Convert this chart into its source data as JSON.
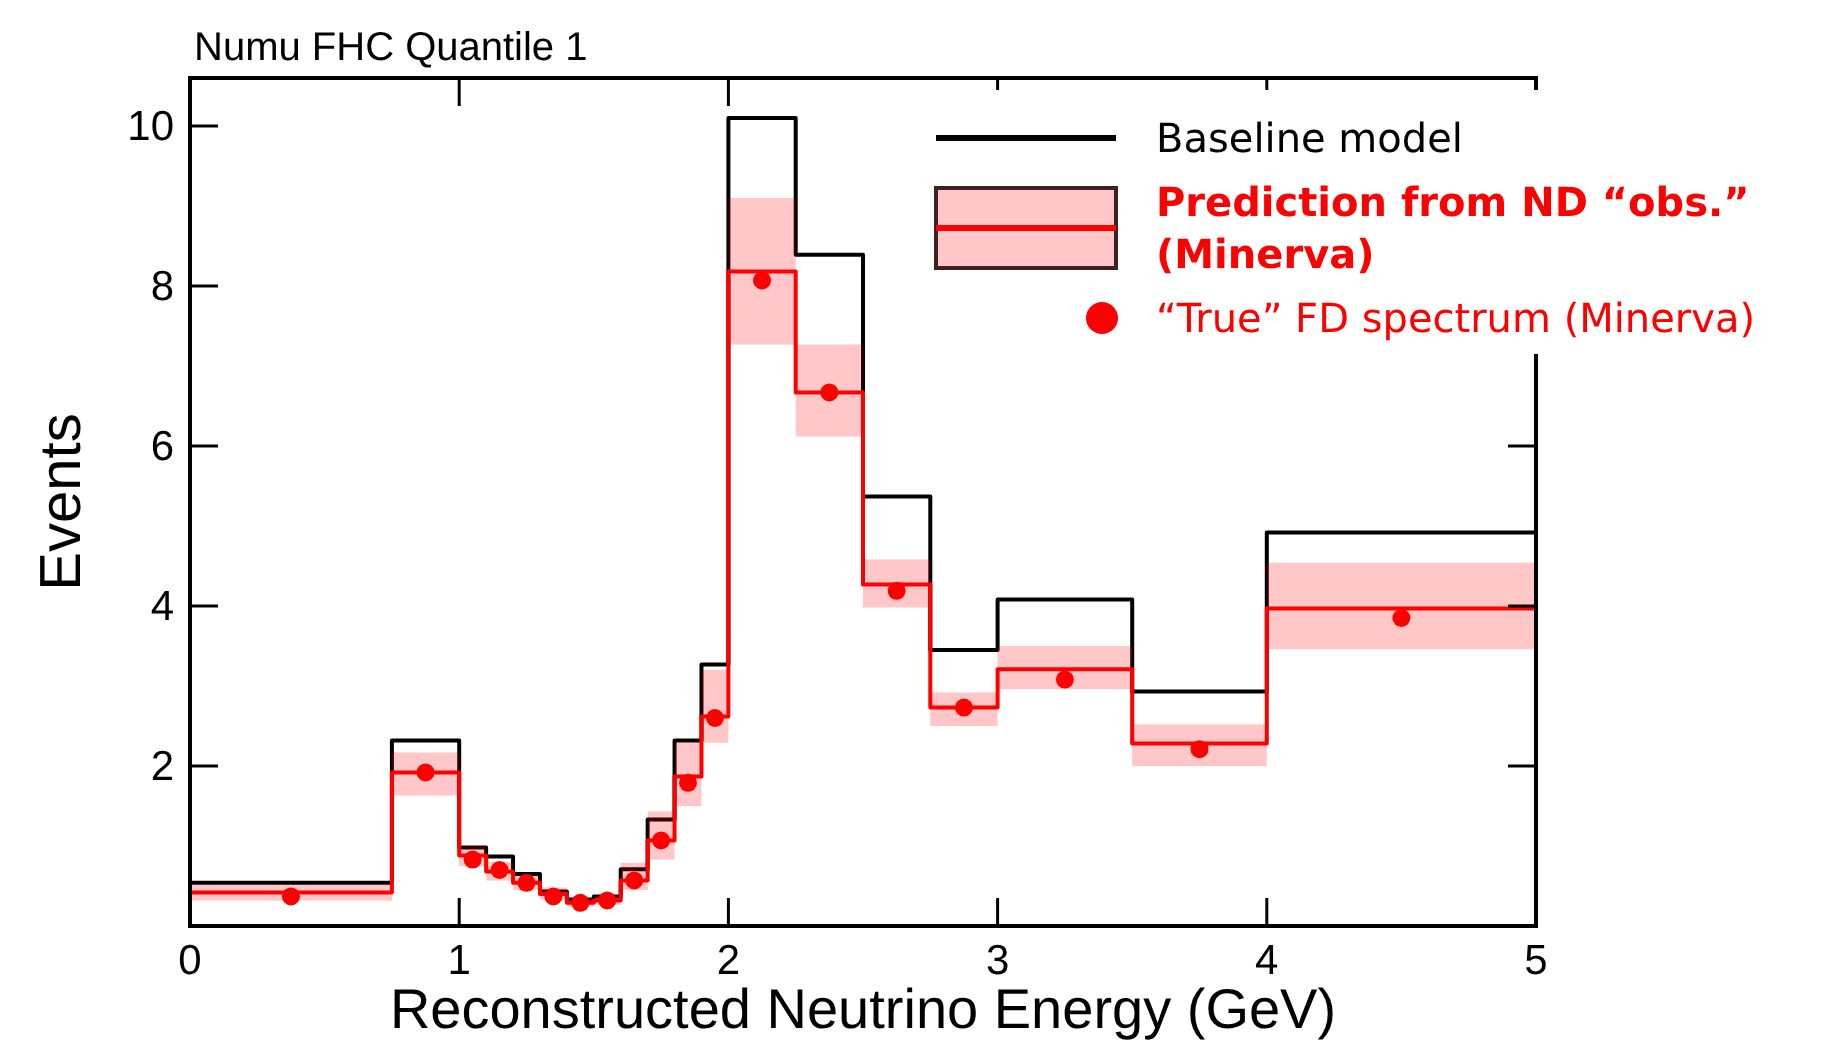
{
  "chart_data": {
    "type": "step",
    "title": "Numu FHC Quantile 1",
    "xlabel": "Reconstructed Neutrino Energy (GeV)",
    "ylabel": "Events",
    "x": [
      0,
      0.75,
      1.0,
      1.1,
      1.2,
      1.3,
      1.4,
      1.5,
      1.6,
      1.7,
      1.8,
      1.9,
      2.0,
      2.25,
      2.5,
      2.75,
      3.0,
      3.5,
      4.0,
      5.0
    ],
    "xlim": [
      0,
      5
    ],
    "xticks": [
      0,
      1,
      2,
      3,
      4,
      5
    ],
    "ylim": [
      0,
      10.6
    ],
    "yticks": [
      2,
      4,
      6,
      8,
      10
    ],
    "grid": false,
    "legend": "top right",
    "series": [
      {
        "name": "Baseline model",
        "color": "#000000",
        "values": [
          0.54,
          2.32,
          0.98,
          0.87,
          0.65,
          0.43,
          0.33,
          0.37,
          0.71,
          1.33,
          2.32,
          3.27,
          10.1,
          8.39,
          5.37,
          3.45,
          4.08,
          2.93,
          4.92,
          4.92
        ]
      },
      {
        "name": "Prediction from ND “obs.” (Minerva)",
        "color": "#ff0000",
        "values": [
          0.42,
          1.92,
          0.88,
          0.68,
          0.54,
          0.4,
          0.29,
          0.32,
          0.57,
          1.07,
          1.87,
          2.62,
          8.18,
          6.67,
          4.27,
          2.73,
          3.21,
          2.28,
          3.97,
          3.97
        ],
        "lower": [
          0.32,
          1.63,
          0.75,
          0.57,
          0.45,
          0.33,
          0.24,
          0.27,
          0.45,
          0.83,
          1.5,
          2.29,
          7.27,
          6.12,
          3.98,
          2.5,
          2.96,
          2.0,
          3.46,
          3.46
        ],
        "upper": [
          0.52,
          2.17,
          1.0,
          0.8,
          0.63,
          0.48,
          0.35,
          0.38,
          0.79,
          1.43,
          2.3,
          3.2,
          9.1,
          7.27,
          4.58,
          2.92,
          3.5,
          2.52,
          4.54,
          4.54
        ]
      },
      {
        "type": "scatter",
        "marker": "circle",
        "name": "“True” FD spectrum (Minerva)",
        "color": "#ff0000",
        "x": [
          0.375,
          0.875,
          1.05,
          1.15,
          1.25,
          1.35,
          1.45,
          1.55,
          1.65,
          1.75,
          1.85,
          1.95,
          2.125,
          2.375,
          2.625,
          2.875,
          3.25,
          3.75,
          4.5
        ],
        "values": [
          0.37,
          1.92,
          0.83,
          0.7,
          0.54,
          0.37,
          0.29,
          0.32,
          0.57,
          1.07,
          1.79,
          2.6,
          8.07,
          6.67,
          4.19,
          2.73,
          3.08,
          2.21,
          3.85
        ]
      }
    ]
  }
}
